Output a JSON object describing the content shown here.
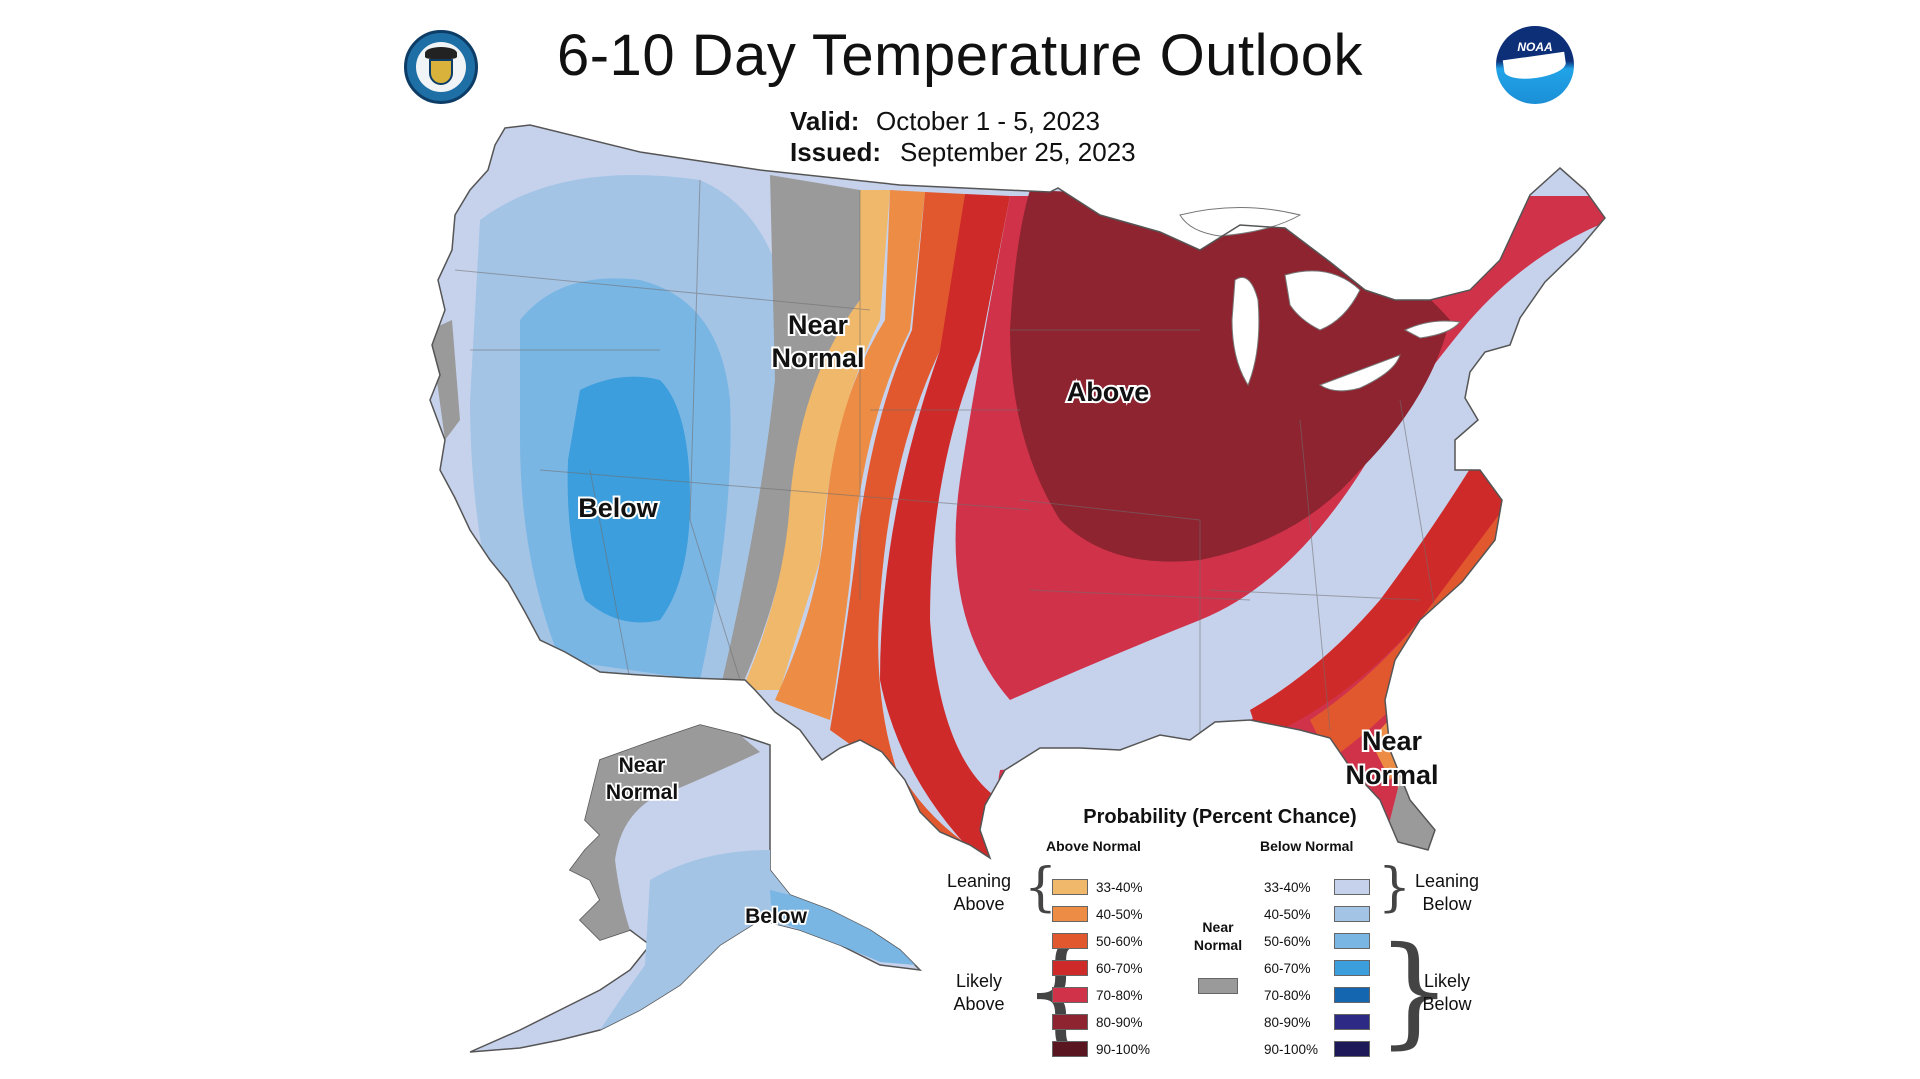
{
  "header": {
    "title": "6-10 Day Temperature Outlook",
    "valid_label": "Valid:",
    "valid_value": "October 1 - 5, 2023",
    "issued_label": "Issued:",
    "issued_value": "September 25, 2023"
  },
  "logos": {
    "doc_seal": "dept-of-commerce-seal",
    "noaa": "noaa-logo",
    "noaa_text": "NOAA"
  },
  "map_labels": {
    "near_normal_west": [
      "Near",
      "Normal"
    ],
    "above": "Above",
    "below_west": "Below",
    "near_normal_florida": [
      "Near",
      "Normal"
    ],
    "near_normal_alaska": [
      "Near",
      "Normal"
    ],
    "below_alaska": "Below"
  },
  "legend": {
    "title": "Probability (Percent Chance)",
    "above_header": "Above Normal",
    "below_header": "Below Normal",
    "leaning_above": [
      "Leaning",
      "Above"
    ],
    "likely_above": [
      "Likely",
      "Above"
    ],
    "leaning_below": [
      "Leaning",
      "Below"
    ],
    "likely_below": [
      "Likely",
      "Below"
    ],
    "near_normal": [
      "Near",
      "Normal"
    ],
    "near_normal_color": "#9a9a9a",
    "above": [
      {
        "range": "33-40%",
        "color": "#f0b86a"
      },
      {
        "range": "40-50%",
        "color": "#ec8c45"
      },
      {
        "range": "50-60%",
        "color": "#e2582e"
      },
      {
        "range": "60-70%",
        "color": "#cf2a2a"
      },
      {
        "range": "70-80%",
        "color": "#d0324a"
      },
      {
        "range": "80-90%",
        "color": "#8e2430"
      },
      {
        "range": "90-100%",
        "color": "#5a1620"
      }
    ],
    "below": [
      {
        "range": "33-40%",
        "color": "#c6d2ec"
      },
      {
        "range": "40-50%",
        "color": "#a4c4e6"
      },
      {
        "range": "50-60%",
        "color": "#7ab6e4"
      },
      {
        "range": "60-70%",
        "color": "#3c9edc"
      },
      {
        "range": "70-80%",
        "color": "#1466b0"
      },
      {
        "range": "80-90%",
        "color": "#2c2a84"
      },
      {
        "range": "90-100%",
        "color": "#1e1a5a"
      }
    ]
  }
}
